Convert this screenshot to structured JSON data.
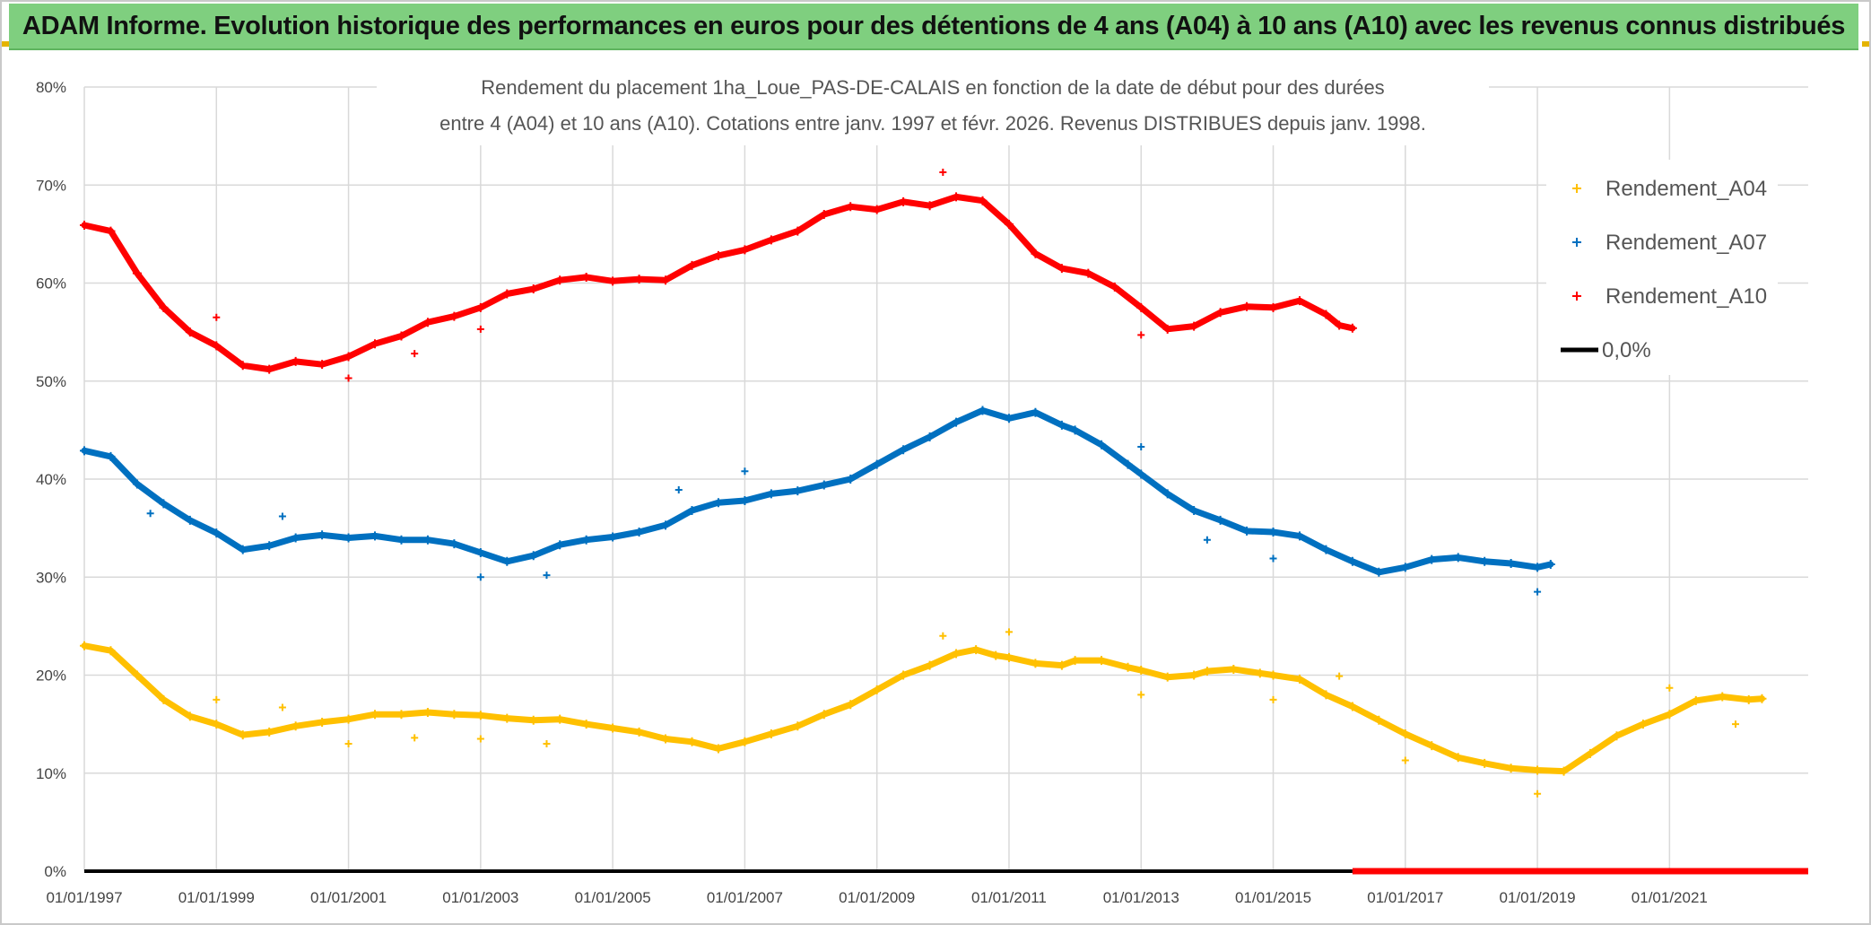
{
  "header": {
    "title": "ADAM Informe. Evolution historique des performances en euros pour des détentions de 4 ans (A04) à 10 ans (A10) avec les revenus connus distribués"
  },
  "colors": {
    "banner": "#7fcf7f",
    "a04": "#ffc000",
    "a07": "#0070c0",
    "a10": "#ff0000",
    "zero": "#000000",
    "grid": "#d9d9d9"
  },
  "chart_data": {
    "type": "scatter",
    "title_lines": [
      "Rendement du placement 1ha_Loue_PAS-DE-CALAIS en fonction de la date de début pour des durées",
      "entre 4 (A04) et 10 ans (A10). Cotations entre janv. 1997 et févr. 2026. Revenus DISTRIBUES depuis janv. 1998."
    ],
    "x_axis": {
      "min": 1997.0,
      "max": 2023.1,
      "ticks": [
        {
          "value": 1997,
          "label": "01/01/1997"
        },
        {
          "value": 1999,
          "label": "01/01/1999"
        },
        {
          "value": 2001,
          "label": "01/01/2001"
        },
        {
          "value": 2003,
          "label": "01/01/2003"
        },
        {
          "value": 2005,
          "label": "01/01/2005"
        },
        {
          "value": 2007,
          "label": "01/01/2007"
        },
        {
          "value": 2009,
          "label": "01/01/2009"
        },
        {
          "value": 2011,
          "label": "01/01/2011"
        },
        {
          "value": 2013,
          "label": "01/01/2013"
        },
        {
          "value": 2015,
          "label": "01/01/2015"
        },
        {
          "value": 2017,
          "label": "01/01/2017"
        },
        {
          "value": 2019,
          "label": "01/01/2019"
        },
        {
          "value": 2021,
          "label": "01/01/2021"
        }
      ]
    },
    "y_axis": {
      "min": 0,
      "max": 80,
      "ticks": [
        {
          "value": 0,
          "label": "0%"
        },
        {
          "value": 10,
          "label": "10%"
        },
        {
          "value": 20,
          "label": "20%"
        },
        {
          "value": 30,
          "label": "30%"
        },
        {
          "value": 40,
          "label": "40%"
        },
        {
          "value": 50,
          "label": "50%"
        },
        {
          "value": 60,
          "label": "60%"
        },
        {
          "value": 70,
          "label": "70%"
        },
        {
          "value": 80,
          "label": "80%"
        }
      ]
    },
    "legend": {
      "position": "right",
      "entries": [
        {
          "key": "a04",
          "label": "Rendement_A04",
          "marker": "+"
        },
        {
          "key": "a07",
          "label": "Rendement_A07",
          "marker": "+"
        },
        {
          "key": "a10",
          "label": "Rendement_A10",
          "marker": "+"
        },
        {
          "key": "zero",
          "label": "0,0%",
          "marker": "line"
        }
      ]
    },
    "series": [
      {
        "name": "Rendement_A04",
        "key": "a04",
        "points": [
          [
            1997.0,
            23.0
          ],
          [
            1997.4,
            22.5
          ],
          [
            1997.8,
            20.0
          ],
          [
            1998.2,
            17.5
          ],
          [
            1998.6,
            15.8
          ],
          [
            1999.0,
            15.0
          ],
          [
            1999.4,
            13.9
          ],
          [
            1999.8,
            14.2
          ],
          [
            2000.2,
            14.8
          ],
          [
            2000.6,
            15.2
          ],
          [
            2001.0,
            15.5
          ],
          [
            2001.4,
            16.0
          ],
          [
            2001.8,
            16.0
          ],
          [
            2002.2,
            16.2
          ],
          [
            2002.6,
            16.0
          ],
          [
            2003.0,
            15.9
          ],
          [
            2003.4,
            15.6
          ],
          [
            2003.8,
            15.4
          ],
          [
            2004.2,
            15.5
          ],
          [
            2004.6,
            15.0
          ],
          [
            2005.0,
            14.6
          ],
          [
            2005.4,
            14.2
          ],
          [
            2005.8,
            13.5
          ],
          [
            2006.2,
            13.2
          ],
          [
            2006.6,
            12.5
          ],
          [
            2007.0,
            13.2
          ],
          [
            2007.4,
            14.0
          ],
          [
            2007.8,
            14.8
          ],
          [
            2008.2,
            16.0
          ],
          [
            2008.6,
            17.0
          ],
          [
            2009.0,
            18.5
          ],
          [
            2009.4,
            20.0
          ],
          [
            2009.8,
            21.0
          ],
          [
            2010.2,
            22.2
          ],
          [
            2010.5,
            22.6
          ],
          [
            2010.8,
            22.0
          ],
          [
            2011.0,
            21.8
          ],
          [
            2011.4,
            21.2
          ],
          [
            2011.8,
            21.0
          ],
          [
            2012.0,
            21.5
          ],
          [
            2012.4,
            21.5
          ],
          [
            2012.8,
            20.8
          ],
          [
            2013.0,
            20.5
          ],
          [
            2013.4,
            19.8
          ],
          [
            2013.8,
            20.0
          ],
          [
            2014.0,
            20.4
          ],
          [
            2014.4,
            20.6
          ],
          [
            2014.8,
            20.2
          ],
          [
            2015.0,
            20.0
          ],
          [
            2015.4,
            19.6
          ],
          [
            2015.8,
            18.0
          ],
          [
            2016.2,
            16.8
          ],
          [
            2016.6,
            15.4
          ],
          [
            2017.0,
            14.0
          ],
          [
            2017.4,
            12.8
          ],
          [
            2017.8,
            11.6
          ],
          [
            2018.2,
            11.0
          ],
          [
            2018.6,
            10.5
          ],
          [
            2019.0,
            10.3
          ],
          [
            2019.4,
            10.2
          ],
          [
            2019.8,
            12.0
          ],
          [
            2020.2,
            13.8
          ],
          [
            2020.6,
            15.0
          ],
          [
            2021.0,
            16.0
          ],
          [
            2021.4,
            17.4
          ],
          [
            2021.8,
            17.8
          ],
          [
            2022.2,
            17.5
          ],
          [
            2022.4,
            17.6
          ]
        ],
        "outliers": [
          [
            1999.0,
            17.5
          ],
          [
            2000.0,
            16.7
          ],
          [
            2001.0,
            13.0
          ],
          [
            2002.0,
            13.6
          ],
          [
            2003.0,
            13.5
          ],
          [
            2004.0,
            13.0
          ],
          [
            2010.0,
            24.0
          ],
          [
            2011.0,
            24.4
          ],
          [
            2013.0,
            18.0
          ],
          [
            2015.0,
            17.5
          ],
          [
            2016.0,
            19.9
          ],
          [
            2017.0,
            11.3
          ],
          [
            2019.0,
            7.9
          ],
          [
            2021.0,
            18.7
          ],
          [
            2022.0,
            15.0
          ]
        ]
      },
      {
        "name": "Rendement_A07",
        "key": "a07",
        "points": [
          [
            1997.0,
            42.9
          ],
          [
            1997.4,
            42.3
          ],
          [
            1997.8,
            39.5
          ],
          [
            1998.2,
            37.5
          ],
          [
            1998.6,
            35.8
          ],
          [
            1999.0,
            34.5
          ],
          [
            1999.4,
            32.8
          ],
          [
            1999.8,
            33.2
          ],
          [
            2000.2,
            34.0
          ],
          [
            2000.6,
            34.3
          ],
          [
            2001.0,
            34.0
          ],
          [
            2001.4,
            34.2
          ],
          [
            2001.8,
            33.8
          ],
          [
            2002.2,
            33.8
          ],
          [
            2002.6,
            33.4
          ],
          [
            2003.0,
            32.5
          ],
          [
            2003.4,
            31.6
          ],
          [
            2003.8,
            32.2
          ],
          [
            2004.2,
            33.3
          ],
          [
            2004.6,
            33.8
          ],
          [
            2005.0,
            34.1
          ],
          [
            2005.4,
            34.6
          ],
          [
            2005.8,
            35.3
          ],
          [
            2006.2,
            36.8
          ],
          [
            2006.6,
            37.6
          ],
          [
            2007.0,
            37.8
          ],
          [
            2007.4,
            38.5
          ],
          [
            2007.8,
            38.8
          ],
          [
            2008.2,
            39.4
          ],
          [
            2008.6,
            40.0
          ],
          [
            2009.0,
            41.5
          ],
          [
            2009.4,
            43.0
          ],
          [
            2009.8,
            44.3
          ],
          [
            2010.2,
            45.8
          ],
          [
            2010.6,
            47.0
          ],
          [
            2011.0,
            46.2
          ],
          [
            2011.4,
            46.8
          ],
          [
            2011.8,
            45.5
          ],
          [
            2012.0,
            45.0
          ],
          [
            2012.4,
            43.5
          ],
          [
            2012.8,
            41.5
          ],
          [
            2013.0,
            40.5
          ],
          [
            2013.4,
            38.5
          ],
          [
            2013.8,
            36.8
          ],
          [
            2014.2,
            35.8
          ],
          [
            2014.6,
            34.7
          ],
          [
            2015.0,
            34.6
          ],
          [
            2015.4,
            34.2
          ],
          [
            2015.8,
            32.8
          ],
          [
            2016.2,
            31.6
          ],
          [
            2016.6,
            30.5
          ],
          [
            2017.0,
            31.0
          ],
          [
            2017.4,
            31.8
          ],
          [
            2017.8,
            32.0
          ],
          [
            2018.2,
            31.6
          ],
          [
            2018.6,
            31.4
          ],
          [
            2019.0,
            31.0
          ],
          [
            2019.2,
            31.3
          ]
        ],
        "outliers": [
          [
            1998.0,
            36.5
          ],
          [
            2000.0,
            36.2
          ],
          [
            2003.0,
            30.0
          ],
          [
            2004.0,
            30.2
          ],
          [
            2006.0,
            38.9
          ],
          [
            2007.0,
            40.8
          ],
          [
            2013.0,
            43.3
          ],
          [
            2014.0,
            33.8
          ],
          [
            2015.0,
            31.9
          ],
          [
            2019.0,
            28.5
          ]
        ]
      },
      {
        "name": "Rendement_A10",
        "key": "a10",
        "points": [
          [
            1997.0,
            65.9
          ],
          [
            1997.4,
            65.3
          ],
          [
            1997.8,
            61.0
          ],
          [
            1998.2,
            57.5
          ],
          [
            1998.6,
            55.0
          ],
          [
            1999.0,
            53.6
          ],
          [
            1999.4,
            51.6
          ],
          [
            1999.8,
            51.2
          ],
          [
            2000.2,
            52.0
          ],
          [
            2000.6,
            51.7
          ],
          [
            2001.0,
            52.5
          ],
          [
            2001.4,
            53.8
          ],
          [
            2001.8,
            54.6
          ],
          [
            2002.2,
            56.0
          ],
          [
            2002.6,
            56.6
          ],
          [
            2003.0,
            57.5
          ],
          [
            2003.4,
            58.9
          ],
          [
            2003.8,
            59.4
          ],
          [
            2004.2,
            60.3
          ],
          [
            2004.6,
            60.6
          ],
          [
            2005.0,
            60.2
          ],
          [
            2005.4,
            60.4
          ],
          [
            2005.8,
            60.3
          ],
          [
            2006.2,
            61.8
          ],
          [
            2006.6,
            62.8
          ],
          [
            2007.0,
            63.4
          ],
          [
            2007.4,
            64.4
          ],
          [
            2007.8,
            65.3
          ],
          [
            2008.2,
            67.0
          ],
          [
            2008.6,
            67.8
          ],
          [
            2009.0,
            67.5
          ],
          [
            2009.4,
            68.3
          ],
          [
            2009.8,
            67.9
          ],
          [
            2010.2,
            68.8
          ],
          [
            2010.6,
            68.4
          ],
          [
            2011.0,
            66.0
          ],
          [
            2011.4,
            63.0
          ],
          [
            2011.8,
            61.5
          ],
          [
            2012.2,
            61.0
          ],
          [
            2012.6,
            59.6
          ],
          [
            2013.0,
            57.5
          ],
          [
            2013.4,
            55.3
          ],
          [
            2013.8,
            55.6
          ],
          [
            2014.2,
            57.0
          ],
          [
            2014.6,
            57.6
          ],
          [
            2015.0,
            57.5
          ],
          [
            2015.4,
            58.2
          ],
          [
            2015.8,
            56.8
          ],
          [
            2016.0,
            55.7
          ],
          [
            2016.2,
            55.4
          ]
        ],
        "outliers": [
          [
            1999.0,
            56.5
          ],
          [
            2001.0,
            50.3
          ],
          [
            2002.0,
            52.8
          ],
          [
            2003.0,
            55.3
          ],
          [
            2010.0,
            71.3
          ],
          [
            2013.0,
            54.7
          ]
        ]
      },
      {
        "name": "0,0%",
        "key": "zero",
        "segments": [
          {
            "from": 1997.0,
            "to": 2016.2,
            "value": 0,
            "color_key": "zero"
          },
          {
            "from": 2016.2,
            "to": 2023.1,
            "value": 0,
            "color_key": "a10"
          }
        ]
      }
    ]
  }
}
